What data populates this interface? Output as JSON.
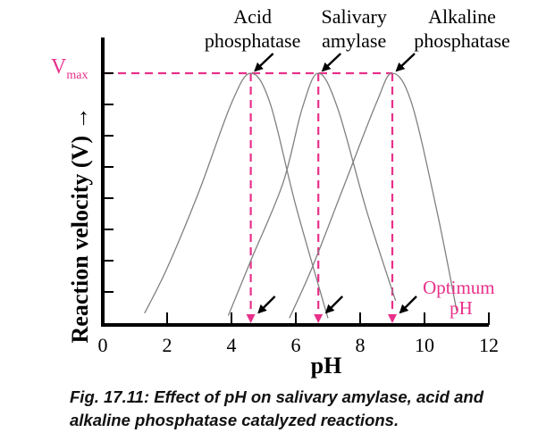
{
  "chart_data": {
    "type": "line",
    "xlabel": "pH",
    "ylabel": "Reaction velocity (V) →",
    "vmax_label": "V",
    "vmax_sub": "max",
    "xlim": [
      0,
      12
    ],
    "ylim": [
      0,
      1
    ],
    "x_ticks": [
      "0",
      "2",
      "4",
      "6",
      "8",
      "10",
      "12"
    ],
    "series": [
      {
        "name": "Acid phosphatase",
        "label_lines": [
          "Acid",
          "phosphatase"
        ],
        "x": [
          1.3,
          2.0,
          3.0,
          4.0,
          4.6,
          5.2,
          6.0,
          7.0
        ],
        "y": [
          0.04,
          0.22,
          0.53,
          0.88,
          1.0,
          0.88,
          0.47,
          0.02
        ]
      },
      {
        "name": "Salivary amylase",
        "label_lines": [
          "Salivary",
          "amylase"
        ],
        "x": [
          3.9,
          4.6,
          5.6,
          6.2,
          6.7,
          7.3,
          8.2,
          9.1
        ],
        "y": [
          0.03,
          0.25,
          0.56,
          0.86,
          1.0,
          0.86,
          0.45,
          0.09
        ]
      },
      {
        "name": "Alkaline phosphatase",
        "label_lines": [
          "Alkaline",
          "phosphatase"
        ],
        "x": [
          5.8,
          6.5,
          7.5,
          8.5,
          9.0,
          9.6,
          10.4,
          11.0
        ],
        "y": [
          0.02,
          0.22,
          0.55,
          0.88,
          1.0,
          0.88,
          0.44,
          0.05
        ]
      }
    ],
    "vmax": 1.0,
    "optima_ph": [
      4.6,
      6.7,
      9.0
    ],
    "optimum_label_lines": [
      "Optimum",
      "pH"
    ]
  },
  "caption": "Fig. 17.11: Effect of pH on salivary amylase, acid and alkaline phosphatase catalyzed reactions.",
  "colors": {
    "accent": "#e8308a",
    "curve": "#808080",
    "axis": "#000000",
    "arrow": "#000000"
  }
}
